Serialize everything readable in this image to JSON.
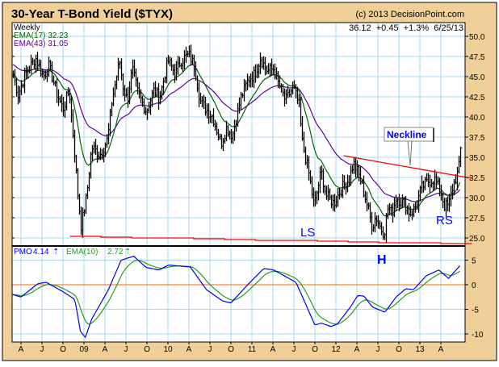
{
  "header": {
    "title": "30-Year T-Bond Yield ($TYX)",
    "copyright": "(c) 2013 DecisionPoint.com",
    "period": "Weekly",
    "ema17": "EMA(17) 32.23",
    "ema43": "EMA(43) 31.05",
    "quote": "36.12  +0.45  +1.3%  6/25/13",
    "pmo_label": "PMO",
    "pmo_value": "4.14",
    "pmo_ema_label": "EMA(10)",
    "pmo_ema_value": "2.72"
  },
  "annotations": {
    "neckline": "Neckline",
    "ls": "LS",
    "h": "H",
    "rs": "RS"
  },
  "colors": {
    "frame_bg": "#F0D098",
    "grid": "#A8D8F0",
    "price": "#000000",
    "ema17": "#006400",
    "ema43": "#660099",
    "trend": "#FF0000",
    "pmo": "#0000EE",
    "pmo_ema": "#22A022",
    "zero": "#FF6600",
    "annotation": "#0000FF"
  },
  "chart_data": [
    {
      "type": "ohlc",
      "title": "30-Year T-Bond Yield ($TYX)",
      "time_unit": "months since Apr 2008",
      "ylim": [
        23.8,
        51.6
      ],
      "y_ticks": [
        "25.0",
        "27.5",
        "30.0",
        "32.5",
        "35.0",
        "37.5",
        "40.0",
        "42.5",
        "45.0",
        "47.5",
        "50.0"
      ],
      "x_labels": [
        "A",
        "J",
        "O",
        "09",
        "A",
        "J",
        "O",
        "10",
        "A",
        "J",
        "O",
        "11",
        "A",
        "J",
        "O",
        "12",
        "A",
        "J",
        "O",
        "13",
        "A"
      ],
      "last_close": 36.12,
      "close_keypoints": [
        [
          -1.2,
          45.3
        ],
        [
          -0.5,
          42.7
        ],
        [
          0.5,
          45.3
        ],
        [
          2.0,
          47.3
        ],
        [
          3.1,
          45
        ],
        [
          3.9,
          46.3
        ],
        [
          5.1,
          42.7
        ],
        [
          5.9,
          41
        ],
        [
          6.8,
          43.3
        ],
        [
          7.6,
          35.3
        ],
        [
          8.0,
          30.7
        ],
        [
          8.5,
          26.5
        ],
        [
          9.3,
          30.3
        ],
        [
          10.0,
          36.3
        ],
        [
          11.2,
          35.3
        ],
        [
          12.3,
          37.3
        ],
        [
          12.9,
          42
        ],
        [
          14.0,
          47
        ],
        [
          14.5,
          43.7
        ],
        [
          15.1,
          42
        ],
        [
          15.8,
          46
        ],
        [
          16.6,
          43
        ],
        [
          17.8,
          40.7
        ],
        [
          18.9,
          43.3
        ],
        [
          19.7,
          42.3
        ],
        [
          20.9,
          47
        ],
        [
          22.0,
          45.3
        ],
        [
          22.7,
          47
        ],
        [
          23.9,
          47.7
        ],
        [
          24.7,
          46.3
        ],
        [
          25.5,
          42
        ],
        [
          26.6,
          40.7
        ],
        [
          27.3,
          40
        ],
        [
          28.5,
          36.7
        ],
        [
          29.3,
          38.7
        ],
        [
          30.1,
          37.7
        ],
        [
          31.3,
          42.3
        ],
        [
          32.4,
          44.7
        ],
        [
          33.3,
          45.3
        ],
        [
          34.1,
          47.3
        ],
        [
          35.1,
          45.7
        ],
        [
          36.0,
          46
        ],
        [
          36.6,
          44.3
        ],
        [
          37.7,
          42
        ],
        [
          38.8,
          43.7
        ],
        [
          39.7,
          41.3
        ],
        [
          40.0,
          37.3
        ],
        [
          41.1,
          32.7
        ],
        [
          41.8,
          28.9
        ],
        [
          42.8,
          33.3
        ],
        [
          43.5,
          30.3
        ],
        [
          44.6,
          29.3
        ],
        [
          45.8,
          31.3
        ],
        [
          46.8,
          32.3
        ],
        [
          47.4,
          34.3
        ],
        [
          48.1,
          33
        ],
        [
          48.7,
          31.3
        ],
        [
          49.5,
          28.7
        ],
        [
          50.1,
          26.3
        ],
        [
          50.6,
          27.7
        ],
        [
          51.4,
          26
        ],
        [
          51.8,
          25.6
        ],
        [
          52.4,
          29
        ],
        [
          52.9,
          28
        ],
        [
          53.5,
          30
        ],
        [
          54.7,
          29.3
        ],
        [
          55.5,
          28
        ],
        [
          56.2,
          28.7
        ],
        [
          57.2,
          31.3
        ],
        [
          58.1,
          32
        ],
        [
          59.0,
          32.3
        ],
        [
          59.9,
          30.7
        ],
        [
          60.4,
          29
        ],
        [
          61.0,
          29
        ],
        [
          61.6,
          31.3
        ],
        [
          62.4,
          33.3
        ],
        [
          62.9,
          36.12
        ]
      ],
      "series": [
        {
          "name": "EMA(17)",
          "last": 32.23
        },
        {
          "name": "EMA(43)",
          "last": 31.05
        }
      ],
      "neckline": [
        [
          46.1,
          35.2
        ],
        [
          64.4,
          32.4
        ]
      ],
      "support_line": [
        [
          7.0,
          25.2
        ],
        [
          64.4,
          24.2
        ]
      ]
    },
    {
      "type": "line",
      "title": "PMO",
      "ylim": [
        -11.8,
        7.7
      ],
      "y_ticks": [
        "-10",
        "-5",
        "0",
        "5"
      ],
      "pmo_keypoints": [
        [
          -1.2,
          -2
        ],
        [
          0,
          -2.5
        ],
        [
          2.4,
          0.2
        ],
        [
          3.6,
          0.5
        ],
        [
          6.1,
          -1.5
        ],
        [
          7.7,
          -3
        ],
        [
          8.5,
          -9.5
        ],
        [
          9.2,
          -10.7
        ],
        [
          10.1,
          -7
        ],
        [
          12.5,
          -1
        ],
        [
          14.3,
          5
        ],
        [
          16.1,
          5.8
        ],
        [
          17.9,
          3.5
        ],
        [
          19.7,
          3
        ],
        [
          21.1,
          4
        ],
        [
          24.2,
          3.6
        ],
        [
          26.5,
          -1
        ],
        [
          28.8,
          -3.3
        ],
        [
          30.0,
          -3.7
        ],
        [
          32.4,
          0
        ],
        [
          34.7,
          3.3
        ],
        [
          36.1,
          3
        ],
        [
          39.3,
          0.5
        ],
        [
          42.0,
          -8.2
        ],
        [
          42.9,
          -7.8
        ],
        [
          44.3,
          -8.5
        ],
        [
          45.2,
          -8
        ],
        [
          47.1,
          -4.5
        ],
        [
          48.1,
          -2.2
        ],
        [
          49.0,
          -2.3
        ],
        [
          50.2,
          -4.5
        ],
        [
          52.0,
          -5.6
        ],
        [
          53.6,
          -2.5
        ],
        [
          55.0,
          -0.8
        ],
        [
          56.1,
          -1
        ],
        [
          57.9,
          1.8
        ],
        [
          59.7,
          3
        ],
        [
          61.1,
          1.3
        ],
        [
          62.9,
          4.14
        ]
      ],
      "series": [
        {
          "name": "PMO",
          "last": 4.14
        },
        {
          "name": "EMA(10)",
          "last": 2.72
        }
      ]
    }
  ]
}
